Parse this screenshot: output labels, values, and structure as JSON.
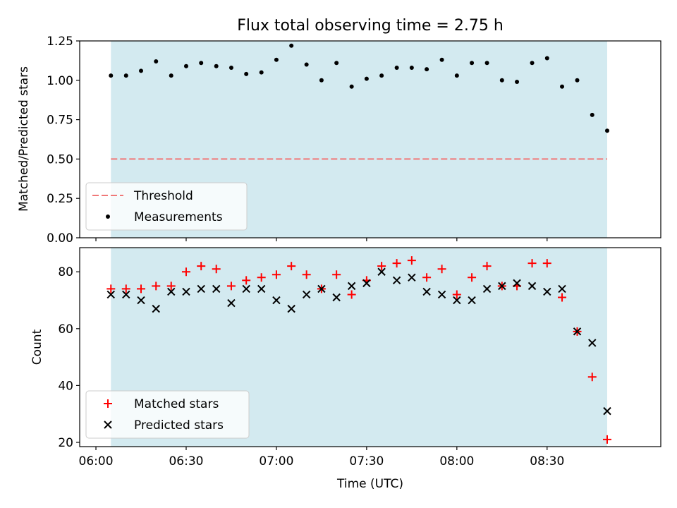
{
  "chart_data": {
    "title": "Flux total observing time = 2.75 h",
    "xlabel": "Time (UTC)",
    "x_unit": "hours (UTC)",
    "xlim": [
      5.91,
      9.13
    ],
    "xticks": [
      {
        "value": 6.0,
        "label": "06:00"
      },
      {
        "value": 6.5,
        "label": "06:30"
      },
      {
        "value": 7.0,
        "label": "07:00"
      },
      {
        "value": 7.5,
        "label": "07:30"
      },
      {
        "value": 8.0,
        "label": "08:00"
      },
      {
        "value": 8.5,
        "label": "08:30"
      }
    ],
    "shaded_span": {
      "x": [
        6.083,
        8.833
      ],
      "color": "#d3eaf0"
    },
    "time_hours": [
      6.083,
      6.167,
      6.25,
      6.333,
      6.417,
      6.5,
      6.583,
      6.667,
      6.75,
      6.833,
      6.917,
      7.0,
      7.083,
      7.167,
      7.25,
      7.333,
      7.417,
      7.5,
      7.583,
      7.667,
      7.75,
      7.833,
      7.917,
      8.0,
      8.083,
      8.167,
      8.25,
      8.333,
      8.417,
      8.5,
      8.583,
      8.667,
      8.75,
      8.833
    ],
    "panels": [
      {
        "type": "scatter",
        "ylabel": "Matched/Predicted stars",
        "ylim": [
          0,
          1.25
        ],
        "yticks": [
          "0.00",
          "0.25",
          "0.50",
          "0.75",
          "1.00",
          "1.25"
        ],
        "threshold": {
          "name": "Threshold",
          "value": 0.5,
          "color": "#f07878"
        },
        "series": [
          {
            "name": "Measurements",
            "color": "#000000",
            "marker": "dot",
            "values": [
              1.03,
              1.03,
              1.06,
              1.12,
              1.03,
              1.09,
              1.11,
              1.09,
              1.08,
              1.04,
              1.05,
              1.13,
              1.22,
              1.1,
              1.0,
              1.11,
              0.96,
              1.01,
              1.03,
              1.08,
              1.08,
              1.07,
              1.13,
              1.03,
              1.11,
              1.11,
              1.0,
              0.99,
              1.11,
              1.14,
              0.96,
              1.0,
              0.78,
              0.68
            ]
          }
        ],
        "legend": {
          "position": "lower-left"
        }
      },
      {
        "type": "scatter",
        "ylabel": "Count",
        "ylim": [
          18.5,
          88.5
        ],
        "yticks": [
          "20",
          "40",
          "60",
          "80"
        ],
        "series": [
          {
            "name": "Matched stars",
            "color": "#ff0000",
            "marker": "plus",
            "values": [
              74,
              74,
              74,
              75,
              75,
              80,
              82,
              81,
              75,
              77,
              78,
              79,
              82,
              79,
              74,
              79,
              72,
              77,
              82,
              83,
              84,
              78,
              81,
              72,
              78,
              82,
              75,
              75,
              83,
              83,
              71,
              59,
              43,
              21
            ]
          },
          {
            "name": "Predicted stars",
            "color": "#000000",
            "marker": "x",
            "values": [
              72,
              72,
              70,
              67,
              73,
              73,
              74,
              74,
              69,
              74,
              74,
              70,
              67,
              72,
              74,
              71,
              75,
              76,
              80,
              77,
              78,
              73,
              72,
              70,
              70,
              74,
              75,
              76,
              75,
              73,
              74,
              59,
              55,
              31
            ]
          }
        ],
        "legend": {
          "position": "lower-left"
        }
      }
    ]
  }
}
